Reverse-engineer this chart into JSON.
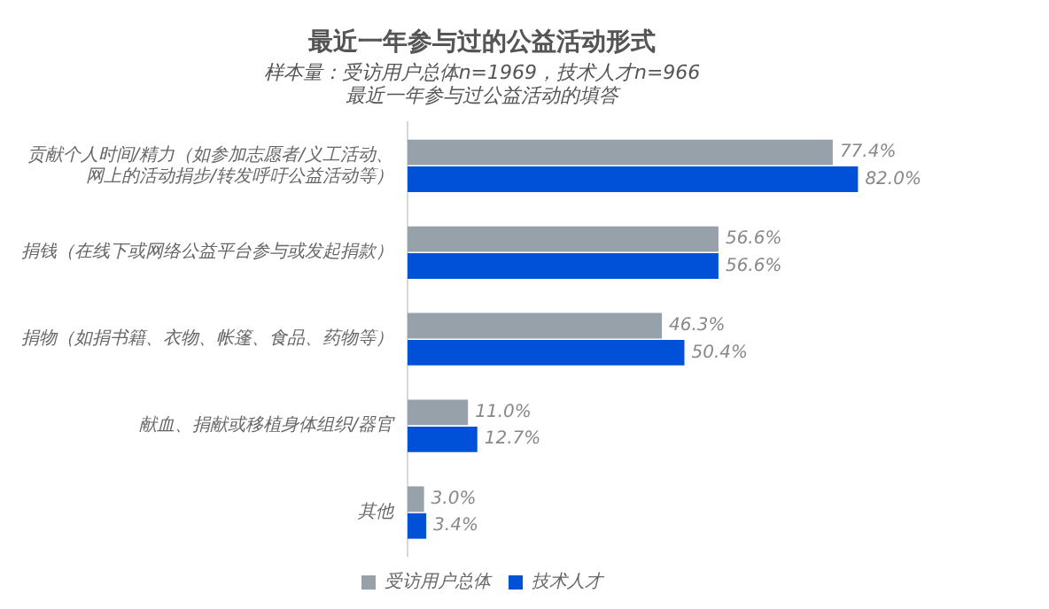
{
  "chart_data": {
    "type": "bar",
    "orientation": "horizontal",
    "title": "最近一年参与过的公益活动形式",
    "subtitle": "样本量：受访用户总体n=1969，技术人才n=966\n最近一年参与过公益活动的填答",
    "categories": [
      "贡献个人时间/精力（如参加志愿者/义工活动、网上的活动捐步/转发呼吁公益活动等）",
      "捐钱（在线下或网络公益平台参与或发起捐款）",
      "捐物（如捐书籍、衣物、帐篷、食品、药物等）",
      "献血、捐献或移植身体组织/器官",
      "其他"
    ],
    "series": [
      {
        "name": "受访用户总体",
        "color": "#97a1aa",
        "values": [
          77.4,
          56.6,
          46.3,
          11.0,
          3.0
        ],
        "value_labels": [
          "77.4%",
          "56.6%",
          "46.3%",
          "11.0%",
          "3.0%"
        ]
      },
      {
        "name": "技术人才",
        "color": "#0050d8",
        "values": [
          82.0,
          56.6,
          50.4,
          12.7,
          3.4
        ],
        "value_labels": [
          "82.0%",
          "56.6%",
          "50.4%",
          "12.7%",
          "3.4%"
        ]
      }
    ],
    "legend": "bottom"
  }
}
